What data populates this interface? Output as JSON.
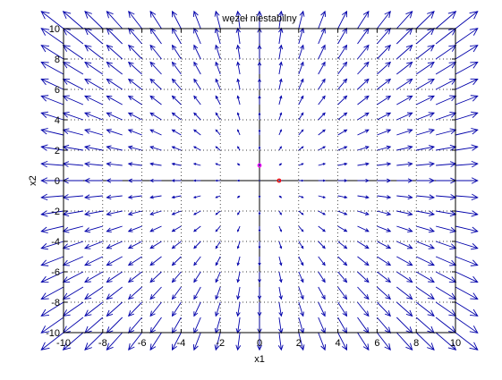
{
  "chart_data": {
    "type": "quiver",
    "title": "węzeł niestabilny",
    "xlabel": "x1",
    "ylabel": "x2",
    "xlim": [
      -10,
      10
    ],
    "ylim": [
      -10,
      10
    ],
    "xticks": [
      -10,
      -8,
      -6,
      -4,
      -2,
      0,
      2,
      4,
      6,
      8,
      10
    ],
    "yticks": [
      -10,
      -8,
      -6,
      -4,
      -2,
      0,
      2,
      4,
      6,
      8,
      10
    ],
    "grid": true,
    "grid_style": "dotted",
    "axes_lines": true,
    "field": {
      "description_formula": "dx1 = x1, dx2 = x2",
      "x_start": -10,
      "x_end": 10,
      "x_step": 1,
      "y_start": -10,
      "y_end": 10,
      "y_step": 1,
      "color": "#0000aa"
    },
    "markers": [
      {
        "x": 0,
        "y": 1,
        "color": "#ff00ff"
      },
      {
        "x": 1,
        "y": 0,
        "color": "#ff0000"
      }
    ]
  }
}
